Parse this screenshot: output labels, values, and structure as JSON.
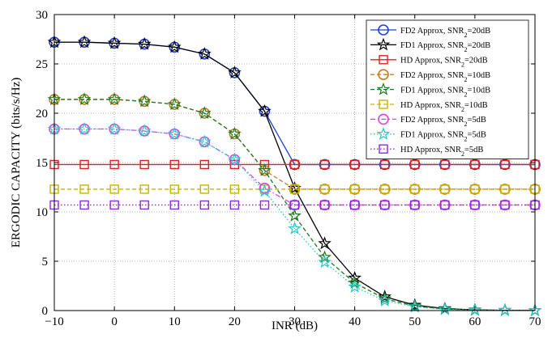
{
  "chart_data": {
    "type": "line",
    "xlabel": "INR (dB)",
    "ylabel": "ERGODIC CAPACITY (bits/s/Hz)",
    "xlim": [
      -10,
      70
    ],
    "ylim": [
      0,
      30
    ],
    "xticks": [
      -10,
      0,
      10,
      20,
      30,
      40,
      50,
      60,
      70
    ],
    "yticks": [
      0,
      5,
      10,
      15,
      20,
      25,
      30
    ],
    "grid": true,
    "legend_position": "top-right",
    "x": [
      -10,
      -5,
      0,
      5,
      10,
      15,
      20,
      25,
      30,
      35,
      40,
      45,
      50,
      55,
      60,
      65,
      70
    ],
    "series": [
      {
        "name": "FD2 Approx, SNR",
        "name_sub": "2",
        "name_suffix": "=20dB",
        "color": "#1f3fd8",
        "marker": "circle",
        "dash": "solid",
        "values": [
          27.2,
          27.2,
          27.1,
          27.0,
          26.7,
          26.0,
          24.1,
          20.2,
          14.8,
          14.8,
          14.8,
          14.8,
          14.8,
          14.8,
          14.8,
          14.8,
          14.8
        ]
      },
      {
        "name": "FD1 Approx, SNR",
        "name_sub": "2",
        "name_suffix": "=20dB",
        "color": "#000000",
        "marker": "star",
        "dash": "solid",
        "values": [
          27.2,
          27.2,
          27.1,
          27.0,
          26.7,
          26.0,
          24.1,
          20.2,
          12.4,
          6.8,
          3.3,
          1.4,
          0.55,
          0.2,
          0.07,
          0.03,
          0.01
        ]
      },
      {
        "name": "HD Approx, SNR",
        "name_sub": "2",
        "name_suffix": "=20dB",
        "color": "#e02020",
        "marker": "square",
        "dash": "solid",
        "values": [
          14.8,
          14.8,
          14.8,
          14.8,
          14.8,
          14.8,
          14.8,
          14.8,
          14.8,
          14.8,
          14.8,
          14.8,
          14.8,
          14.8,
          14.8,
          14.8,
          14.8
        ]
      },
      {
        "name": "FD2 Approx, SNR",
        "name_sub": "2",
        "name_suffix": "=10dB",
        "color": "#c87a22",
        "marker": "circle",
        "dash": "dash",
        "values": [
          21.4,
          21.4,
          21.4,
          21.2,
          20.9,
          20.0,
          17.9,
          14.2,
          12.3,
          12.3,
          12.3,
          12.3,
          12.3,
          12.3,
          12.3,
          12.3,
          12.3
        ]
      },
      {
        "name": "FD1 Approx, SNR",
        "name_sub": "2",
        "name_suffix": "=10dB",
        "color": "#1e7a1e",
        "marker": "star",
        "dash": "dash",
        "values": [
          21.4,
          21.4,
          21.4,
          21.2,
          20.9,
          20.0,
          17.9,
          14.2,
          9.6,
          5.4,
          2.8,
          1.2,
          0.45,
          0.15,
          0.05,
          0.02,
          0.01
        ]
      },
      {
        "name": "HD Approx, SNR",
        "name_sub": "2",
        "name_suffix": "=10dB",
        "color": "#c8b400",
        "marker": "square",
        "dash": "dash",
        "values": [
          12.3,
          12.3,
          12.3,
          12.3,
          12.3,
          12.3,
          12.3,
          12.3,
          12.3,
          12.3,
          12.3,
          12.3,
          12.3,
          12.3,
          12.3,
          12.3,
          12.3
        ]
      },
      {
        "name": "FD2 Approx, SNR",
        "name_sub": "2",
        "name_suffix": "=5dB",
        "color": "#e040e0",
        "marker": "circle",
        "dash": "dashdot",
        "values": [
          18.4,
          18.4,
          18.4,
          18.2,
          17.9,
          17.1,
          15.3,
          12.4,
          10.7,
          10.7,
          10.7,
          10.7,
          10.7,
          10.7,
          10.7,
          10.7,
          10.7
        ]
      },
      {
        "name": "FD1 Approx, SNR",
        "name_sub": "2",
        "name_suffix": "=5dB",
        "color": "#20c8c8",
        "marker": "star",
        "dash": "dot",
        "values": [
          18.4,
          18.4,
          18.4,
          18.2,
          17.9,
          17.1,
          15.3,
          12.1,
          8.3,
          4.9,
          2.4,
          1.0,
          0.38,
          0.13,
          0.04,
          0.02,
          0.01
        ]
      },
      {
        "name": "HD Approx, SNR",
        "name_sub": "2",
        "name_suffix": "=5dB",
        "color": "#8a2be2",
        "marker": "square",
        "dash": "dot",
        "values": [
          10.7,
          10.7,
          10.7,
          10.7,
          10.7,
          10.7,
          10.7,
          10.7,
          10.7,
          10.7,
          10.7,
          10.7,
          10.7,
          10.7,
          10.7,
          10.7,
          10.7
        ]
      }
    ]
  }
}
